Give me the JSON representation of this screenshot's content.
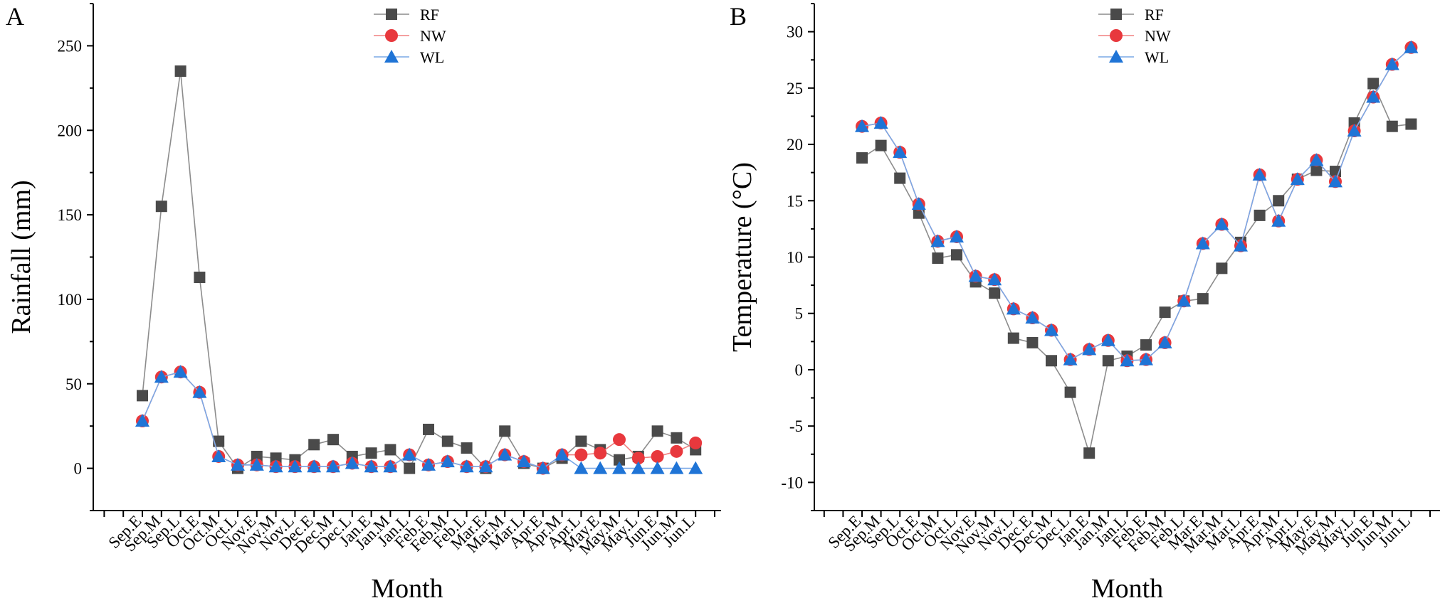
{
  "chart_data": [
    {
      "type": "line",
      "panel_label": "A",
      "xlabel": "Month",
      "ylabel": "Rainfall (mm)",
      "ylim": [
        -25,
        275
      ],
      "yticks": [
        0,
        50,
        100,
        150,
        200,
        250
      ],
      "legend_position": "top-center",
      "categories": [
        "Sep.E",
        "Sep.M",
        "Sep.L",
        "Oct.E",
        "Oct.M",
        "Oct.L",
        "Nov.E",
        "Nov.M",
        "Nov.L",
        "Dec.E",
        "Dec.M",
        "Dec.L",
        "Jan.E",
        "Jan.M",
        "Jan.L",
        "Feb.E",
        "Feb.M",
        "Feb.L",
        "Mar.E",
        "Mar.M",
        "Mar.L",
        "Apr.E",
        "Apr.M",
        "Apr.L",
        "May.E",
        "May.M",
        "May.L",
        "Jun.E",
        "Jun.M",
        "Jun.L"
      ],
      "series": [
        {
          "name": "RF",
          "marker": "square",
          "color": "#4a4a4a",
          "line_color": "#8c8c8c",
          "values": [
            43,
            155,
            235,
            113,
            16,
            0,
            7,
            6,
            5,
            14,
            17,
            7,
            9,
            11,
            0,
            23,
            16,
            12,
            0,
            22,
            3,
            0,
            6,
            16,
            11,
            5,
            7,
            22,
            18,
            11
          ]
        },
        {
          "name": "NW",
          "marker": "circle",
          "color": "#e8383d",
          "line_color": "#f08080",
          "values": [
            28,
            54,
            57,
            45,
            7,
            2,
            2,
            1,
            1,
            1,
            1,
            3,
            1,
            1,
            8,
            2,
            4,
            1,
            1,
            8,
            4,
            0,
            8,
            8,
            9,
            17,
            6,
            7,
            10,
            15
          ]
        },
        {
          "name": "WL",
          "marker": "triangle",
          "color": "#1f74d6",
          "line_color": "#7aa8e6",
          "values": [
            28,
            54,
            57,
            45,
            7,
            2,
            2,
            1,
            1,
            1,
            1,
            3,
            1,
            1,
            8,
            2,
            4,
            1,
            1,
            8,
            4,
            0,
            8,
            0,
            0,
            0,
            0,
            0,
            0,
            0
          ]
        }
      ]
    },
    {
      "type": "line",
      "panel_label": "B",
      "xlabel": "Month",
      "ylabel": "Temperature (°C)",
      "ylim": [
        -12.5,
        32.5
      ],
      "yticks": [
        -10,
        -5,
        0,
        5,
        10,
        15,
        20,
        25,
        30
      ],
      "legend_position": "top-center",
      "categories": [
        "Sep.E",
        "Sep.M",
        "Sep.L",
        "Oct.E",
        "Oct.M",
        "Oct.L",
        "Nov.E",
        "Nov.M",
        "Nov.L",
        "Dec.E",
        "Dec.M",
        "Dec.L",
        "Jan.E",
        "Jan.M",
        "Jan.L",
        "Feb.E",
        "Feb.M",
        "Feb.L",
        "Mar.E",
        "Mar.M",
        "Mar.L",
        "Apr.E",
        "Apr.M",
        "Apr.L",
        "May.E",
        "May.M",
        "May.L",
        "Jun.E",
        "Jun.M",
        "Jun.L"
      ],
      "series": [
        {
          "name": "RF",
          "marker": "square",
          "color": "#4a4a4a",
          "line_color": "#8c8c8c",
          "values": [
            18.8,
            19.9,
            17.0,
            13.9,
            9.9,
            10.2,
            7.8,
            6.8,
            2.8,
            2.4,
            0.8,
            -2.0,
            -7.4,
            0.8,
            1.2,
            2.2,
            5.1,
            6.1,
            6.3,
            9.0,
            11.3,
            13.7,
            15.0,
            16.9,
            17.7,
            17.6,
            21.9,
            25.4,
            21.6,
            21.8
          ]
        },
        {
          "name": "NW",
          "marker": "circle",
          "color": "#e8383d",
          "line_color": "#f08080",
          "values": [
            21.6,
            21.9,
            19.3,
            14.7,
            11.4,
            11.8,
            8.3,
            8.0,
            5.4,
            4.6,
            3.5,
            0.9,
            1.8,
            2.6,
            0.8,
            0.9,
            2.4,
            6.1,
            11.2,
            12.9,
            11.0,
            17.3,
            13.2,
            16.9,
            18.6,
            16.7,
            21.2,
            24.2,
            27.1,
            28.6
          ]
        },
        {
          "name": "WL",
          "marker": "triangle",
          "color": "#1f74d6",
          "line_color": "#7aa8e6",
          "values": [
            21.6,
            21.9,
            19.3,
            14.7,
            11.4,
            11.8,
            8.3,
            8.0,
            5.4,
            4.6,
            3.5,
            0.9,
            1.8,
            2.6,
            0.8,
            0.9,
            2.4,
            6.1,
            11.2,
            12.9,
            11.0,
            17.3,
            13.2,
            16.9,
            18.6,
            16.7,
            21.2,
            24.2,
            27.1,
            28.6
          ]
        }
      ]
    }
  ]
}
